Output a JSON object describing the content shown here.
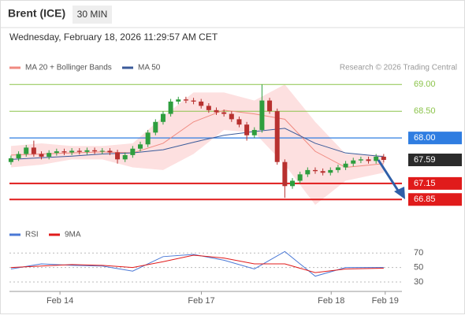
{
  "header": {
    "title": "Brent (ICE)",
    "timeframe": "30 MIN",
    "date": "Wednesday, February 18, 2026 11:29:57 AM CET"
  },
  "chart_data": [
    {
      "type": "candlestick",
      "source": "Research © 2026 Trading Central",
      "x": [
        0,
        1,
        2,
        3,
        4,
        5,
        6,
        7,
        8,
        9,
        10,
        11,
        12,
        13,
        14,
        15,
        16,
        17,
        18,
        19,
        20,
        21,
        22,
        23,
        24,
        25,
        26,
        27,
        28,
        29,
        30,
        31,
        32,
        33,
        34,
        35,
        36,
        37,
        38,
        39,
        40,
        41,
        42,
        43,
        44,
        45,
        46,
        47,
        48,
        49
      ],
      "open": [
        67.55,
        67.62,
        67.7,
        67.82,
        67.7,
        67.65,
        67.72,
        67.75,
        67.73,
        67.76,
        67.74,
        67.77,
        67.75,
        67.76,
        67.73,
        67.6,
        67.68,
        67.8,
        67.88,
        68.1,
        68.3,
        68.45,
        68.68,
        68.72,
        68.7,
        68.68,
        68.6,
        68.52,
        68.48,
        68.45,
        68.35,
        68.25,
        68.05,
        68.15,
        68.7,
        68.5,
        67.55,
        67.1,
        67.2,
        67.32,
        67.4,
        67.38,
        67.35,
        67.4,
        67.45,
        67.52,
        67.58,
        67.6,
        67.57,
        67.65
      ],
      "high": [
        67.67,
        67.75,
        67.87,
        67.95,
        67.75,
        67.77,
        67.8,
        67.8,
        67.81,
        67.81,
        67.82,
        67.82,
        67.81,
        67.81,
        67.78,
        67.73,
        67.85,
        67.93,
        68.15,
        68.35,
        68.5,
        68.73,
        68.77,
        68.77,
        68.75,
        68.73,
        68.65,
        68.57,
        68.53,
        68.5,
        68.4,
        68.3,
        68.2,
        69.0,
        68.75,
        68.55,
        67.6,
        67.25,
        67.37,
        67.45,
        67.45,
        67.43,
        67.45,
        67.5,
        67.57,
        67.63,
        67.65,
        67.65,
        67.7,
        67.7
      ],
      "low": [
        67.5,
        67.57,
        67.65,
        67.65,
        67.6,
        67.6,
        67.67,
        67.68,
        67.68,
        67.69,
        67.69,
        67.7,
        67.7,
        67.68,
        67.52,
        67.55,
        67.63,
        67.75,
        67.83,
        68.05,
        68.25,
        68.4,
        68.63,
        68.65,
        68.63,
        68.55,
        68.47,
        68.43,
        68.4,
        68.3,
        68.2,
        67.95,
        68.0,
        68.1,
        68.45,
        67.5,
        66.88,
        67.05,
        67.15,
        67.27,
        67.33,
        67.3,
        67.3,
        67.35,
        67.4,
        67.47,
        67.53,
        67.52,
        67.52,
        67.54
      ],
      "close": [
        67.62,
        67.7,
        67.82,
        67.7,
        67.65,
        67.72,
        67.75,
        67.73,
        67.76,
        67.74,
        67.77,
        67.75,
        67.76,
        67.73,
        67.6,
        67.68,
        67.8,
        67.88,
        68.1,
        68.3,
        68.45,
        68.68,
        68.72,
        68.7,
        68.68,
        68.6,
        68.52,
        68.48,
        68.45,
        68.35,
        68.25,
        68.05,
        68.15,
        68.7,
        68.5,
        67.55,
        67.1,
        67.2,
        67.32,
        67.4,
        67.38,
        67.35,
        67.4,
        67.45,
        67.52,
        67.58,
        67.6,
        67.57,
        67.65,
        67.59
      ],
      "up_color": "#2e9e3e",
      "down_color": "#b8312f",
      "overlay_x": [
        0,
        4,
        8,
        12,
        16,
        20,
        24,
        28,
        32,
        36,
        40,
        44,
        49
      ],
      "bands": {
        "name": "MA 20 + Bollinger Bands",
        "color": "#f08a80",
        "fill": "#fde0e0",
        "upper": [
          67.85,
          67.9,
          67.85,
          67.85,
          67.9,
          68.4,
          68.85,
          68.85,
          68.7,
          69.0,
          68.3,
          67.7,
          67.68
        ],
        "values": [
          67.68,
          67.7,
          67.72,
          67.74,
          67.72,
          67.9,
          68.3,
          68.52,
          68.45,
          68.35,
          67.75,
          67.45,
          67.52
        ],
        "lower": [
          67.45,
          67.5,
          67.6,
          67.6,
          67.45,
          67.4,
          67.7,
          68.15,
          68.1,
          67.5,
          66.75,
          67.2,
          67.35
        ]
      },
      "ma": {
        "name": "MA 50",
        "color": "#3b5b9a",
        "values": [
          67.6,
          67.63,
          67.66,
          67.7,
          67.72,
          67.78,
          67.92,
          68.05,
          68.12,
          68.18,
          67.9,
          67.72,
          67.65
        ]
      },
      "levels": [
        {
          "value": 69,
          "label": "69.00",
          "color": "#8bc34a",
          "box": false
        },
        {
          "value": 68.5,
          "label": "68.50",
          "color": "#8bc34a",
          "box": false
        },
        {
          "value": 68,
          "label": "68.00",
          "color": "#2f7de1",
          "box": true
        },
        {
          "value": 67.15,
          "label": "67.15",
          "color": "#e01b1b",
          "box": true
        },
        {
          "value": 66.85,
          "label": "66.85",
          "color": "#e01b1b",
          "box": true
        }
      ],
      "last_price": {
        "value": 67.59,
        "label": "67.59",
        "color": "#2b2b2b"
      },
      "xlim": [
        -0.2,
        51.4
      ],
      "ylim": [
        66.53,
        69.18
      ]
    },
    {
      "type": "line",
      "x": [
        0,
        4,
        8,
        12,
        16,
        20,
        24,
        28,
        32,
        36,
        40,
        44,
        49
      ],
      "series": [
        {
          "name": "RSI",
          "color": "#4a78d6",
          "values": [
            48,
            55,
            53,
            52,
            45,
            65,
            68,
            60,
            48,
            72,
            38,
            50,
            50
          ]
        },
        {
          "name": "9MA",
          "color": "#e01b1b",
          "values": [
            50,
            52,
            54,
            53,
            50,
            58,
            67,
            63,
            55,
            55,
            43,
            48,
            49
          ]
        }
      ],
      "xlim": [
        -0.2,
        51.4
      ],
      "ylim": [
        17,
        80
      ],
      "yticks": [
        30,
        50,
        70
      ],
      "xticks": [
        {
          "value": 6.44,
          "label": "Feb 14"
        },
        {
          "value": 25.03,
          "label": "Feb 17"
        },
        {
          "value": 42.1,
          "label": "Feb 18"
        },
        {
          "value": 49.2,
          "label": "Feb 19"
        }
      ]
    }
  ]
}
